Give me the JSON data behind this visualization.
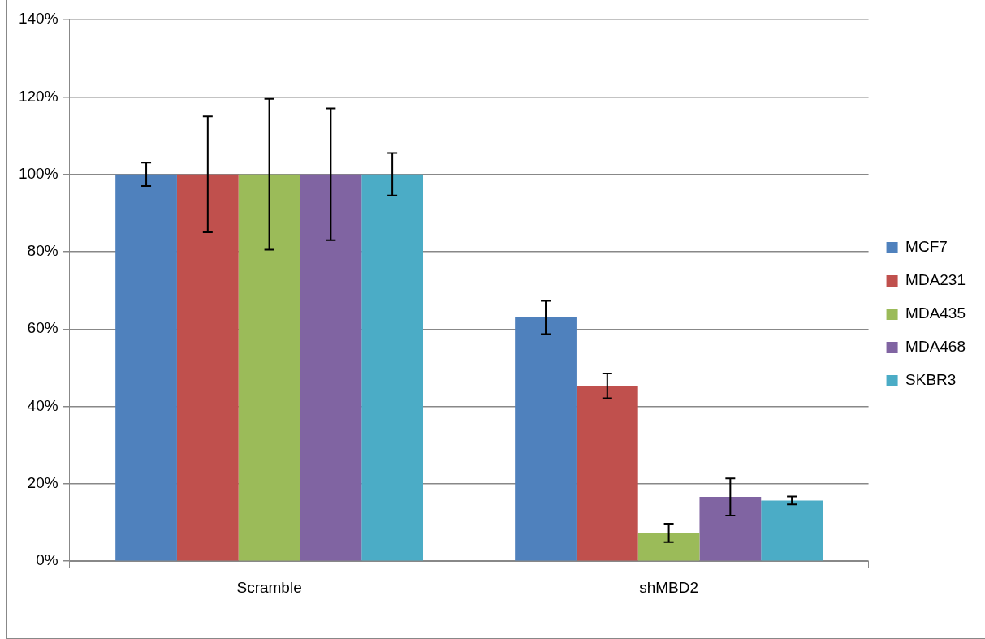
{
  "chart_data": {
    "type": "bar",
    "categories": [
      "Scramble",
      "shMBD2"
    ],
    "series": [
      {
        "name": "MCF7",
        "color": "#4f81bd",
        "values": [
          100,
          63
        ],
        "errors": [
          3,
          4.3
        ]
      },
      {
        "name": "MDA231",
        "color": "#c0504d",
        "values": [
          100,
          45.3
        ],
        "errors": [
          15,
          3.2
        ]
      },
      {
        "name": "MDA435",
        "color": "#9bbb59",
        "values": [
          100,
          7.3
        ],
        "errors": [
          19.5,
          2.4
        ]
      },
      {
        "name": "MDA468",
        "color": "#8064a2",
        "values": [
          100,
          16.6
        ],
        "errors": [
          17,
          4.8
        ]
      },
      {
        "name": "SKBR3",
        "color": "#4bacc6",
        "values": [
          100,
          15.7
        ],
        "errors": [
          5.5,
          1
        ]
      }
    ],
    "ylim": [
      0,
      140
    ],
    "yticks": [
      {
        "value": 0,
        "label": "0%"
      },
      {
        "value": 20,
        "label": "20%"
      },
      {
        "value": 40,
        "label": "40%"
      },
      {
        "value": 60,
        "label": "60%"
      },
      {
        "value": 80,
        "label": "80%"
      },
      {
        "value": 100,
        "label": "100%"
      },
      {
        "value": 120,
        "label": "120%"
      },
      {
        "value": 140,
        "label": "140%"
      }
    ],
    "grid": "y",
    "legend": "right"
  }
}
